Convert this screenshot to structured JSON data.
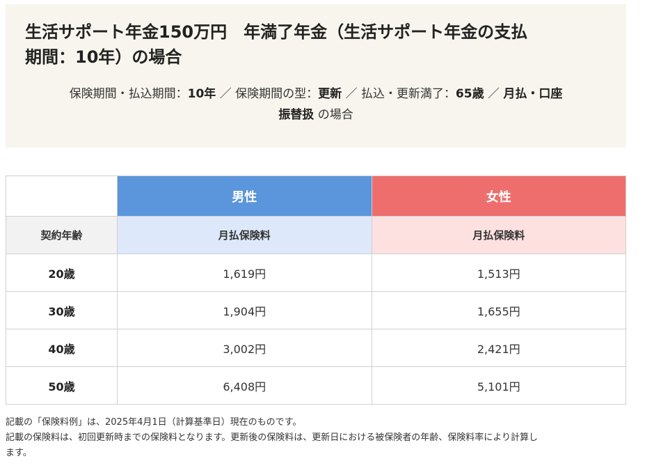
{
  "header": {
    "title_line1": "生活サポート年金150万円　年満了年金（生活サポート年金の支払",
    "title_line2": "期間：10年）の場合",
    "cond_label1": "保険期間・払込期間：",
    "cond_value1": "10年",
    "sep": "／",
    "cond_label2": "保険期間の型：",
    "cond_value2": "更新",
    "cond_label3": "払込・更新満了：",
    "cond_value3": "65歳",
    "cond_value4a": "月払・口座",
    "cond_value4b": "振替扱",
    "cond_suffix": "の場合"
  },
  "table": {
    "male_label": "男性",
    "female_label": "女性",
    "age_header": "契約年齢",
    "male_sub": "月払保険料",
    "female_sub": "月払保険料",
    "rows": [
      {
        "age": "20歳",
        "male": "1,619円",
        "female": "1,513円"
      },
      {
        "age": "30歳",
        "male": "1,904円",
        "female": "1,655円"
      },
      {
        "age": "40歳",
        "male": "3,002円",
        "female": "2,421円"
      },
      {
        "age": "50歳",
        "male": "6,408円",
        "female": "5,101円"
      }
    ]
  },
  "notes": {
    "line1": "記載の「保険料例」は、2025年4月1日（計算基準日）現在のものです。",
    "line2": "記載の保険料は、初回更新時までの保険料となります。更新後の保険料は、更新日における被保険者の年齢、保険料率により計算し",
    "line3": "ます。"
  },
  "colors": {
    "male_header": "#5b95dc",
    "female_header": "#ee6e6e",
    "male_sub_bg": "#dde9fb",
    "female_sub_bg": "#fde0e0",
    "header_box_bg": "#f8f5ee"
  }
}
